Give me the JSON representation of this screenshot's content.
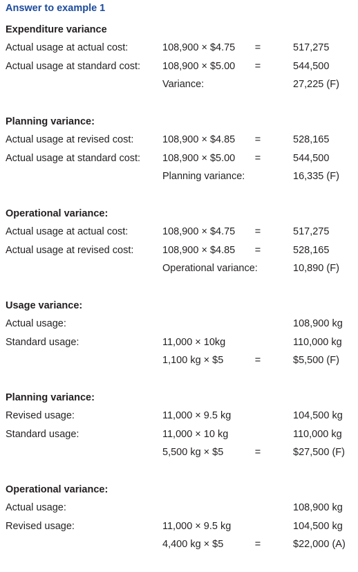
{
  "title": "Answer to example 1",
  "sections": [
    {
      "heading": "Expenditure variance",
      "rows": [
        {
          "label": "Actual usage at actual cost:",
          "calc": "108,900 × $4.75",
          "eq": "=",
          "value": "517,275"
        },
        {
          "label": "Actual usage at standard cost:",
          "calc": "108,900 × $5.00",
          "eq": "=",
          "value": "544,500"
        },
        {
          "label": "",
          "calc": "Variance:",
          "eq": "",
          "value": "27,225 (F)"
        }
      ]
    },
    {
      "heading": "Planning variance:",
      "rows": [
        {
          "label": "Actual usage at revised cost:",
          "calc": "108,900 × $4.85",
          "eq": "=",
          "value": "528,165"
        },
        {
          "label": "Actual usage at standard cost:",
          "calc": "108,900 × $5.00",
          "eq": "=",
          "value": "544,500"
        },
        {
          "label": "",
          "calc": "Planning variance:",
          "eq": "",
          "value": "16,335 (F)"
        }
      ]
    },
    {
      "heading": "Operational variance:",
      "rows": [
        {
          "label": "Actual usage at actual cost:",
          "calc": "108,900 × $4.75",
          "eq": "=",
          "value": "517,275"
        },
        {
          "label": "Actual usage at revised cost:",
          "calc": "108,900 × $4.85",
          "eq": "=",
          "value": "528,165"
        },
        {
          "label": "",
          "calc": "Operational variance:",
          "eq": "",
          "value": "10,890 (F)"
        }
      ]
    },
    {
      "heading": "Usage variance:",
      "rows": [
        {
          "label": "Actual usage:",
          "calc": "",
          "eq": "",
          "value": "108,900 kg"
        },
        {
          "label": "Standard usage:",
          "calc": "11,000 × 10kg",
          "eq": "",
          "value": "110,000 kg"
        },
        {
          "label": "",
          "calc": "1,100 kg × $5",
          "eq": "=",
          "value": "$5,500 (F)"
        }
      ]
    },
    {
      "heading": "Planning variance:",
      "rows": [
        {
          "label": "Revised usage:",
          "calc": "11,000 × 9.5 kg",
          "eq": "",
          "value": "104,500 kg"
        },
        {
          "label": "Standard usage:",
          "calc": "11,000 × 10 kg",
          "eq": "",
          "value": "110,000 kg"
        },
        {
          "label": "",
          "calc": "5,500 kg × $5",
          "eq": "=",
          "value": "$27,500 (F)"
        }
      ]
    },
    {
      "heading": "Operational variance:",
      "rows": [
        {
          "label": "Actual usage:",
          "calc": "",
          "eq": "",
          "value": "108,900 kg"
        },
        {
          "label": "Revised usage:",
          "calc": "11,000 × 9.5 kg",
          "eq": "",
          "value": "104,500 kg"
        },
        {
          "label": "",
          "calc": "4,400 kg × $5",
          "eq": "=",
          "value": "$22,000 (A)"
        }
      ]
    }
  ]
}
